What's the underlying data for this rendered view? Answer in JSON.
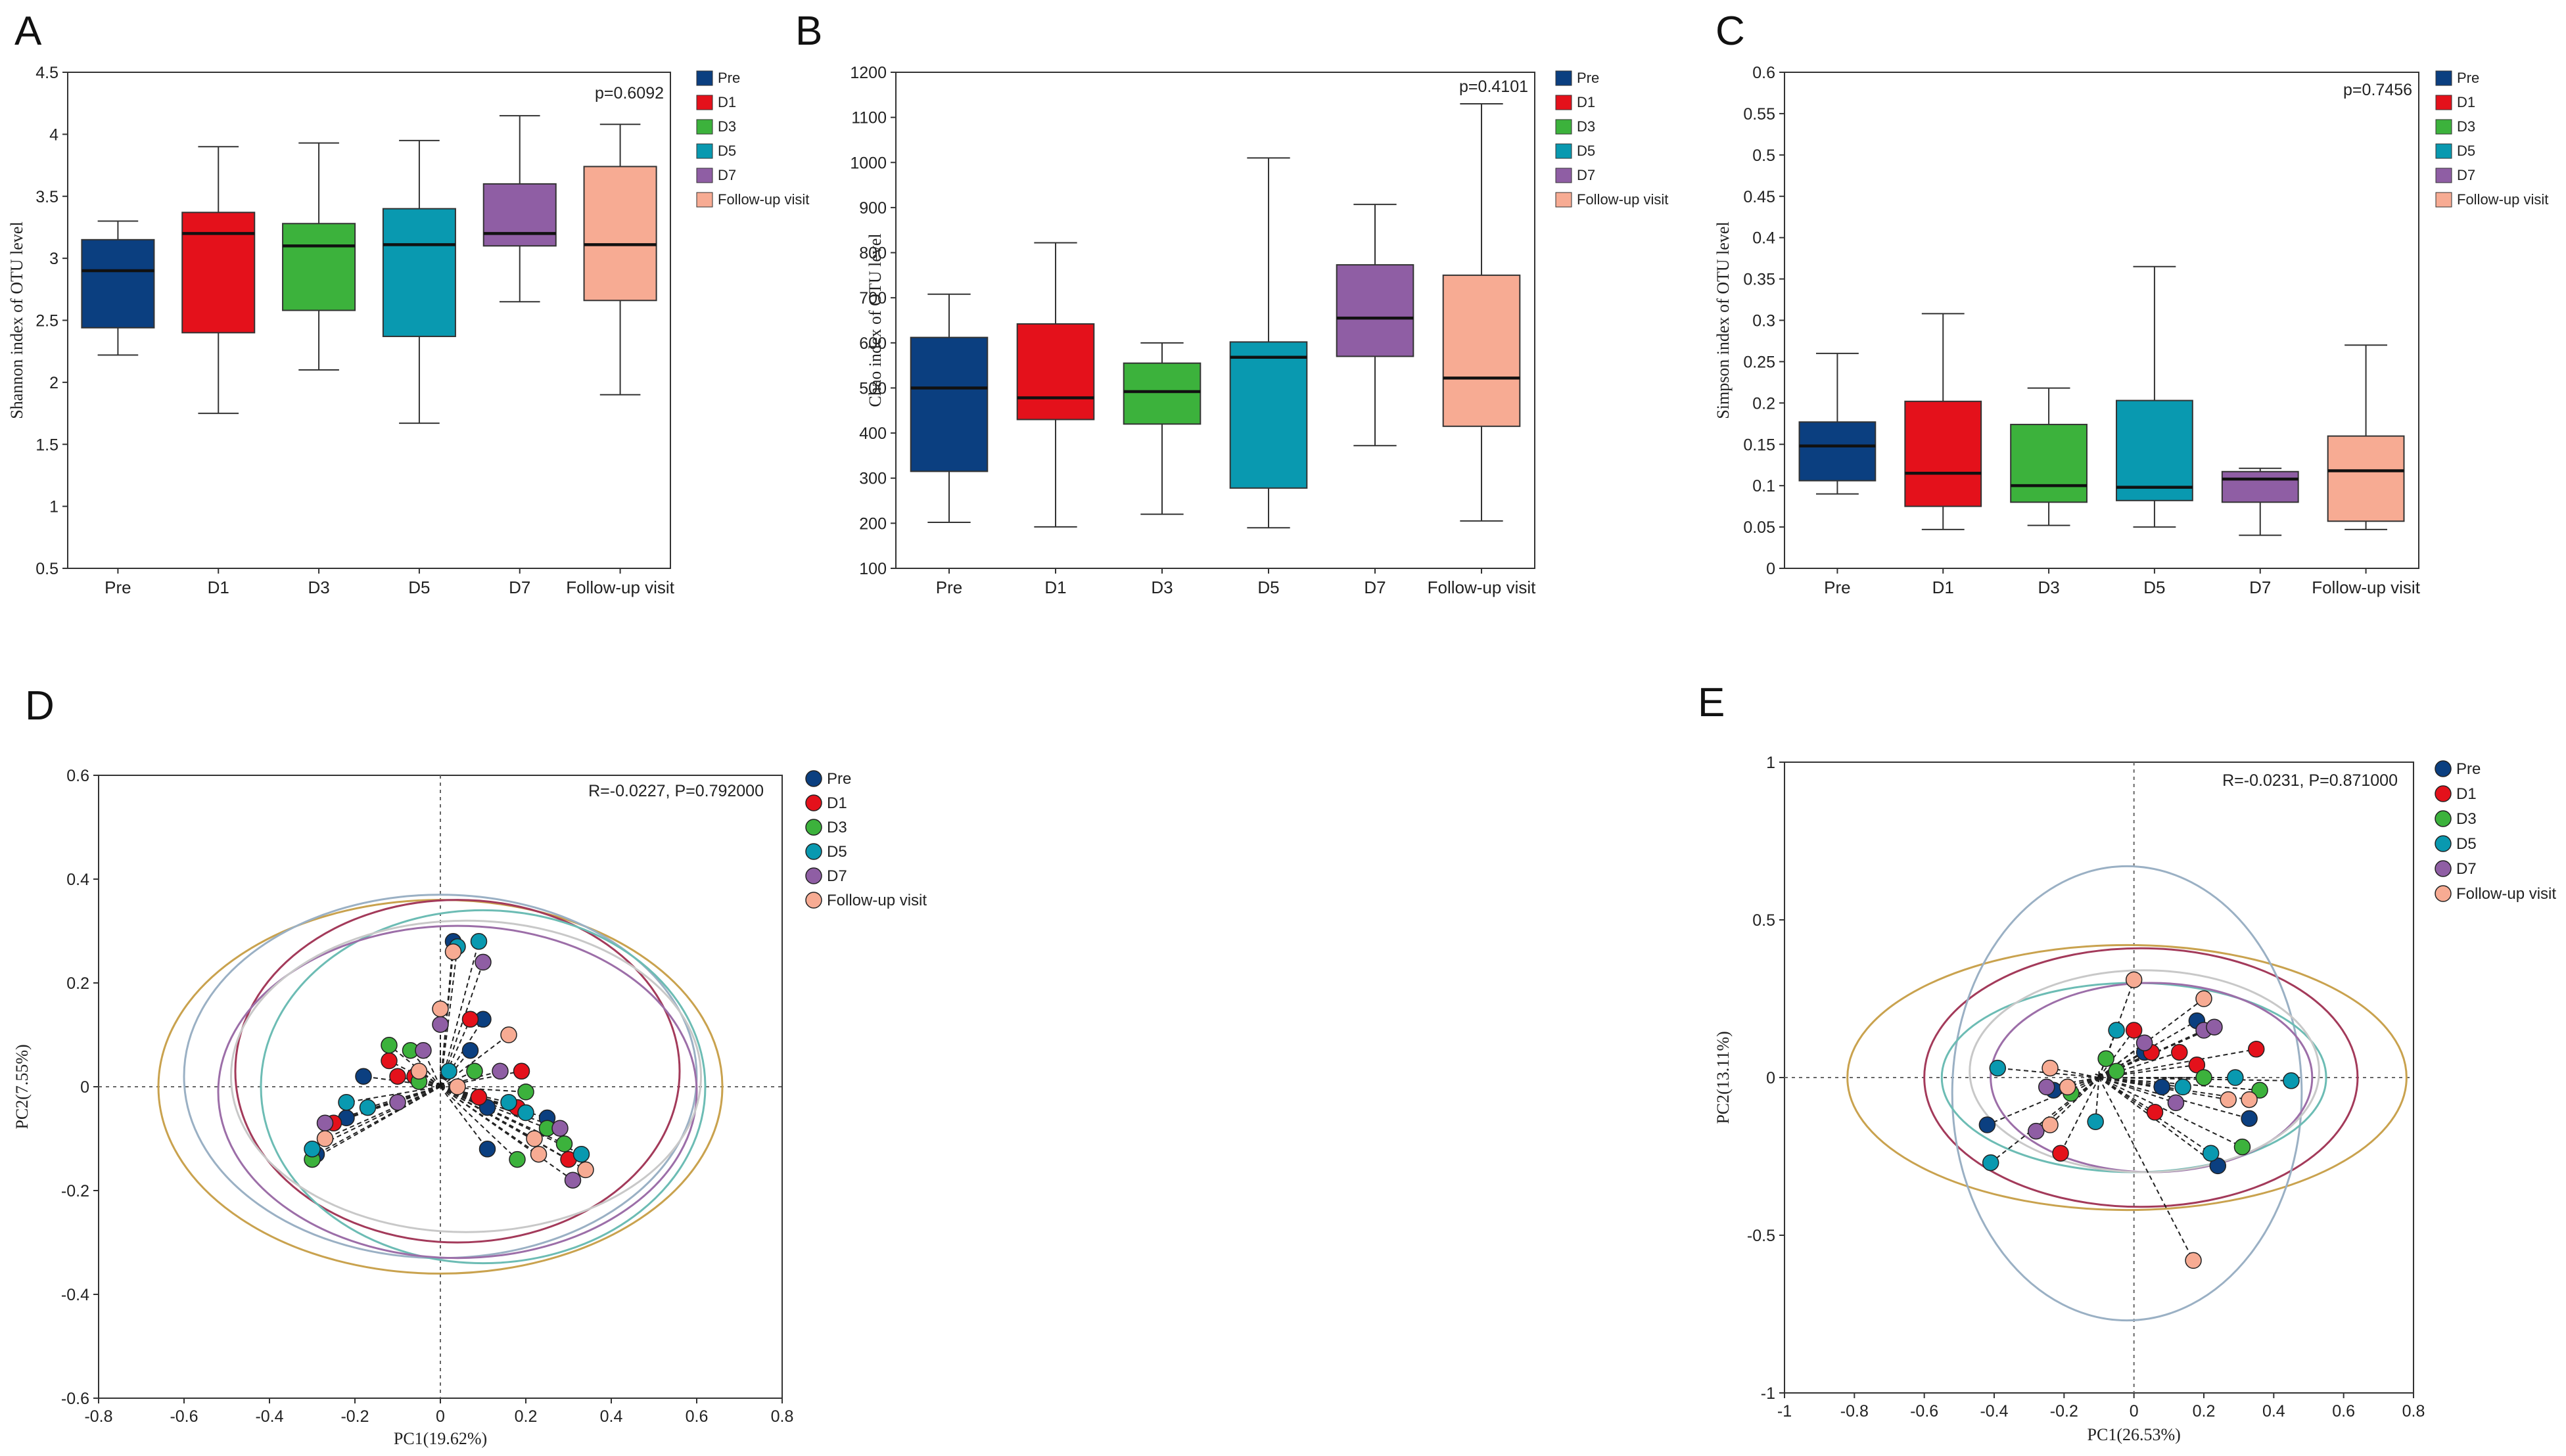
{
  "figure": {
    "groups": [
      "Pre",
      "D1",
      "D3",
      "D5",
      "D7",
      "Follow-up visit"
    ],
    "colors": {
      "Pre": "#0b3f80",
      "D1": "#e4111b",
      "D3": "#3cb23c",
      "D5": "#0999b0",
      "D7": "#8f5ea4",
      "Follow-up visit": "#f7ab93"
    },
    "ellipse_colors": [
      "#c9a24e",
      "#a33a5a",
      "#9ab0c4",
      "#6cbcb4",
      "#9c6ea8",
      "#c8c8c8"
    ]
  },
  "chart_data": [
    {
      "panel": "A",
      "type": "box",
      "ylabel": "Shannon index of OTU level",
      "ylim": [
        0.5,
        4.5
      ],
      "yticks": [
        "0.5",
        "1",
        "1.5",
        "2",
        "2.5",
        "3",
        "3.5",
        "4",
        "4.5"
      ],
      "annotation": "p=0.6092",
      "categories": [
        "Pre",
        "D1",
        "D3",
        "D5",
        "D7",
        "Follow-up visit"
      ],
      "boxes": [
        {
          "min": 2.22,
          "q1": 2.44,
          "median": 2.9,
          "q3": 3.15,
          "max": 3.3
        },
        {
          "min": 1.75,
          "q1": 2.4,
          "median": 3.2,
          "q3": 3.37,
          "max": 3.9
        },
        {
          "min": 2.1,
          "q1": 2.58,
          "median": 3.1,
          "q3": 3.28,
          "max": 3.93
        },
        {
          "min": 1.67,
          "q1": 2.37,
          "median": 3.11,
          "q3": 3.4,
          "max": 3.95
        },
        {
          "min": 2.65,
          "q1": 3.1,
          "median": 3.2,
          "q3": 3.6,
          "max": 4.15
        },
        {
          "min": 1.9,
          "q1": 2.66,
          "median": 3.11,
          "q3": 3.74,
          "max": 4.08
        }
      ]
    },
    {
      "panel": "B",
      "type": "box",
      "ylabel": "Chao index of OTU level",
      "ylim": [
        100,
        1200
      ],
      "yticks": [
        "100",
        "200",
        "300",
        "400",
        "500",
        "600",
        "700",
        "800",
        "900",
        "1000",
        "1100",
        "1200"
      ],
      "annotation": "p=0.4101",
      "categories": [
        "Pre",
        "D1",
        "D3",
        "D5",
        "D7",
        "Follow-up visit"
      ],
      "boxes": [
        {
          "min": 202,
          "q1": 315,
          "median": 500,
          "q3": 612,
          "max": 708
        },
        {
          "min": 192,
          "q1": 430,
          "median": 478,
          "q3": 642,
          "max": 822
        },
        {
          "min": 220,
          "q1": 420,
          "median": 492,
          "q3": 555,
          "max": 600
        },
        {
          "min": 190,
          "q1": 278,
          "median": 568,
          "q3": 602,
          "max": 1010
        },
        {
          "min": 372,
          "q1": 570,
          "median": 655,
          "q3": 773,
          "max": 907
        },
        {
          "min": 205,
          "q1": 415,
          "median": 522,
          "q3": 750,
          "max": 1130
        }
      ]
    },
    {
      "panel": "C",
      "type": "box",
      "ylabel": "Simpson index of OTU level",
      "ylim": [
        0,
        0.6
      ],
      "yticks": [
        "0",
        "0.05",
        "0.1",
        "0.15",
        "0.2",
        "0.25",
        "0.3",
        "0.35",
        "0.4",
        "0.45",
        "0.5",
        "0.55",
        "0.6"
      ],
      "annotation": "p=0.7456",
      "categories": [
        "Pre",
        "D1",
        "D3",
        "D5",
        "D7",
        "Follow-up visit"
      ],
      "boxes": [
        {
          "min": 0.09,
          "q1": 0.106,
          "median": 0.148,
          "q3": 0.177,
          "max": 0.26
        },
        {
          "min": 0.047,
          "q1": 0.075,
          "median": 0.115,
          "q3": 0.202,
          "max": 0.308
        },
        {
          "min": 0.052,
          "q1": 0.08,
          "median": 0.1,
          "q3": 0.174,
          "max": 0.218
        },
        {
          "min": 0.05,
          "q1": 0.082,
          "median": 0.098,
          "q3": 0.203,
          "max": 0.365
        },
        {
          "min": 0.04,
          "q1": 0.08,
          "median": 0.108,
          "q3": 0.117,
          "max": 0.121
        },
        {
          "min": 0.047,
          "q1": 0.057,
          "median": 0.118,
          "q3": 0.16,
          "max": 0.27
        }
      ]
    },
    {
      "panel": "D",
      "type": "scatter",
      "xlabel": "PC1(19.62%)",
      "ylabel": "PC2(7.55%)",
      "xlim": [
        -0.8,
        0.8
      ],
      "ylim": [
        -0.6,
        0.6
      ],
      "xticks": [
        "-0.8",
        "-0.6",
        "-0.4",
        "-0.2",
        "0",
        "0.2",
        "0.4",
        "0.6",
        "0.8"
      ],
      "yticks": [
        "-0.6",
        "-0.4",
        "-0.2",
        "0",
        "0.2",
        "0.4",
        "0.6"
      ],
      "annotation": "R=-0.0227, P=0.792000",
      "star": [
        0,
        0
      ],
      "ellipses": [
        {
          "cx": 0.0,
          "cy": 0.0,
          "rx": 0.66,
          "ry": 0.36
        },
        {
          "cx": 0.04,
          "cy": 0.03,
          "rx": 0.52,
          "ry": 0.33
        },
        {
          "cx": 0.0,
          "cy": 0.02,
          "rx": 0.6,
          "ry": 0.35
        },
        {
          "cx": 0.1,
          "cy": 0.0,
          "rx": 0.52,
          "ry": 0.34
        },
        {
          "cx": 0.04,
          "cy": -0.01,
          "rx": 0.56,
          "ry": 0.32
        },
        {
          "cx": 0.06,
          "cy": 0.02,
          "rx": 0.55,
          "ry": 0.3
        }
      ],
      "series": [
        {
          "name": "Pre",
          "points": [
            [
              0.03,
              0.28
            ],
            [
              0.07,
              0.07
            ],
            [
              -0.18,
              0.02
            ],
            [
              -0.22,
              -0.06
            ],
            [
              -0.29,
              -0.13
            ],
            [
              0.11,
              -0.04
            ],
            [
              0.25,
              -0.06
            ],
            [
              0.1,
              0.13
            ],
            [
              0.11,
              -0.12
            ]
          ]
        },
        {
          "name": "D1",
          "points": [
            [
              -0.12,
              0.05
            ],
            [
              -0.1,
              0.02
            ],
            [
              -0.06,
              0.02
            ],
            [
              0.07,
              0.13
            ],
            [
              0.19,
              0.03
            ],
            [
              0.18,
              -0.04
            ],
            [
              0.3,
              -0.14
            ],
            [
              -0.25,
              -0.07
            ],
            [
              0.09,
              -0.02
            ]
          ]
        },
        {
          "name": "D3",
          "points": [
            [
              -0.12,
              0.08
            ],
            [
              -0.07,
              0.07
            ],
            [
              -0.05,
              0.01
            ],
            [
              0.08,
              0.03
            ],
            [
              0.2,
              -0.01
            ],
            [
              0.25,
              -0.08
            ],
            [
              0.18,
              -0.14
            ],
            [
              0.29,
              -0.11
            ],
            [
              -0.3,
              -0.14
            ]
          ]
        },
        {
          "name": "D5",
          "points": [
            [
              0.04,
              0.27
            ],
            [
              0.09,
              0.28
            ],
            [
              -0.22,
              -0.03
            ],
            [
              -0.17,
              -0.04
            ],
            [
              0.02,
              0.03
            ],
            [
              0.16,
              -0.03
            ],
            [
              0.2,
              -0.05
            ],
            [
              0.33,
              -0.13
            ],
            [
              -0.3,
              -0.12
            ]
          ]
        },
        {
          "name": "D7",
          "points": [
            [
              -0.04,
              0.07
            ],
            [
              0.0,
              0.12
            ],
            [
              0.1,
              0.24
            ],
            [
              -0.1,
              -0.03
            ],
            [
              0.14,
              0.03
            ],
            [
              0.28,
              -0.08
            ],
            [
              0.31,
              -0.18
            ],
            [
              -0.27,
              -0.07
            ]
          ]
        },
        {
          "name": "Follow-up visit",
          "points": [
            [
              0.0,
              0.15
            ],
            [
              0.03,
              0.26
            ],
            [
              0.16,
              0.1
            ],
            [
              -0.05,
              0.03
            ],
            [
              0.04,
              0.0
            ],
            [
              0.22,
              -0.1
            ],
            [
              0.23,
              -0.13
            ],
            [
              0.34,
              -0.16
            ],
            [
              -0.27,
              -0.1
            ]
          ]
        }
      ]
    },
    {
      "panel": "E",
      "type": "scatter",
      "xlabel": "PC1(26.53%)",
      "ylabel": "PC2(13.11%)",
      "xlim": [
        -1,
        0.8
      ],
      "ylim": [
        -1,
        1
      ],
      "xticks": [
        "-1",
        "-0.8",
        "-0.6",
        "-0.4",
        "-0.2",
        "0",
        "0.2",
        "0.4",
        "0.6",
        "0.8"
      ],
      "yticks": [
        "-1",
        "-0.5",
        "0",
        "0.5",
        "1"
      ],
      "annotation": "R=-0.0231, P=0.871000",
      "star": [
        -0.1,
        0
      ],
      "ellipses": [
        {
          "cx": -0.02,
          "cy": 0.0,
          "rx": 0.8,
          "ry": 0.42
        },
        {
          "cx": 0.02,
          "cy": 0.0,
          "rx": 0.62,
          "ry": 0.41
        },
        {
          "cx": -0.02,
          "cy": -0.05,
          "rx": 0.5,
          "ry": 0.72
        },
        {
          "cx": 0.0,
          "cy": 0.0,
          "rx": 0.55,
          "ry": 0.3
        },
        {
          "cx": 0.05,
          "cy": 0.0,
          "rx": 0.46,
          "ry": 0.3
        },
        {
          "cx": 0.03,
          "cy": 0.02,
          "rx": 0.5,
          "ry": 0.32
        }
      ],
      "series": [
        {
          "name": "Pre",
          "points": [
            [
              -0.42,
              -0.15
            ],
            [
              -0.23,
              -0.04
            ],
            [
              0.03,
              0.08
            ],
            [
              0.18,
              0.18
            ],
            [
              0.33,
              -0.13
            ],
            [
              0.24,
              -0.28
            ],
            [
              0.08,
              -0.03
            ]
          ]
        },
        {
          "name": "D1",
          "points": [
            [
              0.0,
              0.15
            ],
            [
              0.05,
              0.08
            ],
            [
              0.18,
              0.04
            ],
            [
              0.35,
              0.09
            ],
            [
              0.13,
              0.08
            ],
            [
              -0.21,
              -0.24
            ],
            [
              0.06,
              -0.11
            ]
          ]
        },
        {
          "name": "D3",
          "points": [
            [
              -0.18,
              -0.05
            ],
            [
              -0.08,
              0.06
            ],
            [
              0.2,
              0.0
            ],
            [
              0.36,
              -0.04
            ],
            [
              0.31,
              -0.22
            ],
            [
              -0.05,
              0.02
            ]
          ]
        },
        {
          "name": "D5",
          "points": [
            [
              -0.39,
              0.03
            ],
            [
              -0.05,
              0.15
            ],
            [
              0.14,
              -0.03
            ],
            [
              0.22,
              -0.24
            ],
            [
              0.29,
              0.0
            ],
            [
              0.45,
              -0.01
            ],
            [
              -0.41,
              -0.27
            ],
            [
              -0.11,
              -0.14
            ]
          ]
        },
        {
          "name": "D7",
          "points": [
            [
              -0.25,
              -0.03
            ],
            [
              0.03,
              0.11
            ],
            [
              0.2,
              0.15
            ],
            [
              0.23,
              0.16
            ],
            [
              -0.28,
              -0.17
            ],
            [
              0.12,
              -0.08
            ]
          ]
        },
        {
          "name": "Follow-up visit",
          "points": [
            [
              0.0,
              0.31
            ],
            [
              0.2,
              0.25
            ],
            [
              -0.19,
              -0.03
            ],
            [
              -0.24,
              0.03
            ],
            [
              0.27,
              -0.07
            ],
            [
              0.33,
              -0.07
            ],
            [
              -0.24,
              -0.15
            ],
            [
              0.17,
              -0.58
            ]
          ]
        }
      ]
    }
  ]
}
